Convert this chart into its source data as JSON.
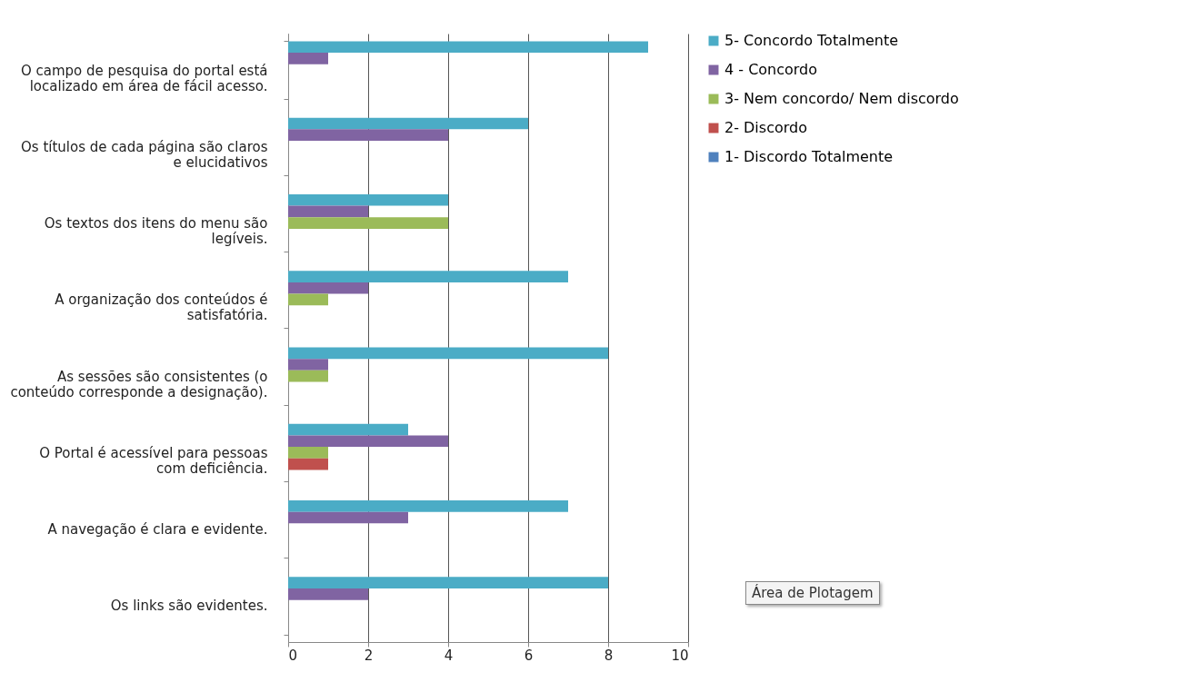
{
  "chart_data": {
    "type": "bar",
    "orientation": "horizontal",
    "categories": [
      "O campo de pesquisa do portal está localizado em área de fácil acesso.",
      "Os títulos de cada página são claros e elucidativos",
      "Os textos dos itens do menu são legíveis.",
      "A organização dos conteúdos é satisfatória.",
      "As sessões são consistentes (o conteúdo corresponde a designação).",
      "O Portal é acessível para pessoas com deficiência.",
      "A navegação é clara e evidente.",
      "Os links são evidentes."
    ],
    "series": [
      {
        "name": "5- Concordo Totalmente",
        "color": "#4bacc6",
        "values": [
          9,
          6,
          4,
          7,
          8,
          3,
          7,
          8
        ]
      },
      {
        "name": "4 - Concordo",
        "color": "#8064a2",
        "values": [
          1,
          4,
          2,
          2,
          1,
          4,
          3,
          2
        ]
      },
      {
        "name": "3- Nem concordo/ Nem discordo",
        "color": "#9bbb59",
        "values": [
          0,
          0,
          4,
          1,
          1,
          1,
          0,
          0
        ]
      },
      {
        "name": "2- Discordo",
        "color": "#c0504d",
        "values": [
          0,
          0,
          0,
          0,
          0,
          1,
          0,
          0
        ]
      },
      {
        "name": "1- Discordo Totalmente",
        "color": "#4f81bd",
        "values": [
          0,
          0,
          0,
          0,
          0,
          0,
          0,
          0
        ]
      }
    ],
    "xlim": [
      0,
      10
    ],
    "xticks": [
      0,
      2,
      4,
      6,
      8,
      10
    ],
    "grid": "x",
    "legend": "right",
    "annotations": [
      "Área de Plotagem"
    ]
  }
}
